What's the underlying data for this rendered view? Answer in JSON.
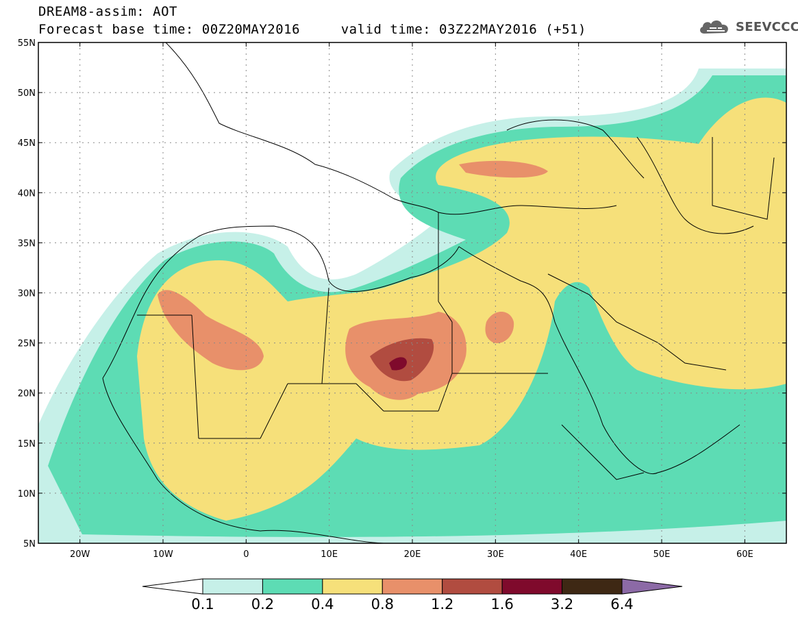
{
  "header": {
    "title_line1": "DREAM8-assim: AOT",
    "title_line2": "Forecast base time: 00Z20MAY2016     valid time: 03Z22MAY2016 (+51)"
  },
  "logo": {
    "text": "SEEVCCC",
    "icon": "cloud-icon"
  },
  "map": {
    "lon_range": [
      -25,
      65
    ],
    "lat_range": [
      5,
      55
    ],
    "lat_labels": [
      {
        "lat": 55,
        "label": "55N"
      },
      {
        "lat": 50,
        "label": "50N"
      },
      {
        "lat": 45,
        "label": "45N"
      },
      {
        "lat": 40,
        "label": "40N"
      },
      {
        "lat": 35,
        "label": "35N"
      },
      {
        "lat": 30,
        "label": "30N"
      },
      {
        "lat": 25,
        "label": "25N"
      },
      {
        "lat": 20,
        "label": "20N"
      },
      {
        "lat": 15,
        "label": "15N"
      },
      {
        "lat": 10,
        "label": "10N"
      },
      {
        "lat": 5,
        "label": "5N"
      }
    ],
    "lon_labels": [
      {
        "lon": -20,
        "label": "20W"
      },
      {
        "lon": -10,
        "label": "10W"
      },
      {
        "lon": 0,
        "label": "0"
      },
      {
        "lon": 10,
        "label": "10E"
      },
      {
        "lon": 20,
        "label": "20E"
      },
      {
        "lon": 30,
        "label": "30E"
      },
      {
        "lon": 40,
        "label": "40E"
      },
      {
        "lon": 50,
        "label": "50E"
      },
      {
        "lon": 60,
        "label": "60E"
      }
    ],
    "grid": true
  },
  "colorbar": {
    "labels": [
      "0.1",
      "0.2",
      "0.4",
      "0.8",
      "1.2",
      "1.6",
      "3.2",
      "6.4"
    ],
    "colors": [
      "#ffffff",
      "#c6f0e8",
      "#5ddcb4",
      "#f6e07a",
      "#e8906a",
      "#b14c40",
      "#7f0a2c",
      "#3e2814",
      "#8c6aa6"
    ]
  }
}
